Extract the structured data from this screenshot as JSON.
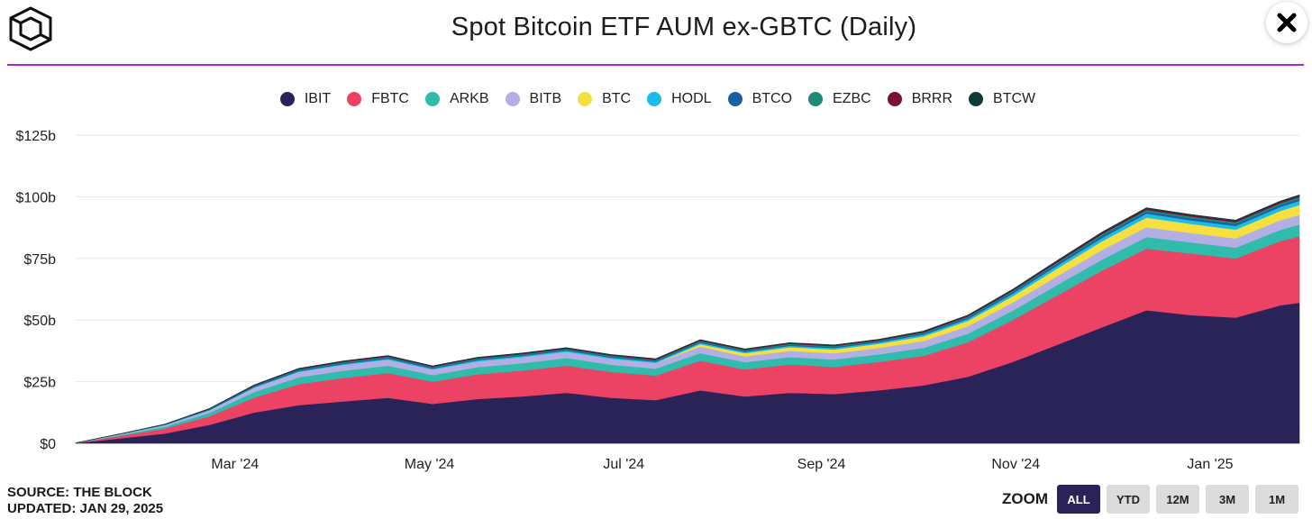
{
  "header": {
    "title": "Spot Bitcoin ETF AUM ex-GBTC (Daily)"
  },
  "footer": {
    "source_line": "SOURCE: THE BLOCK",
    "updated_line": "UPDATED: JAN 29, 2025"
  },
  "zoom": {
    "label": "ZOOM",
    "buttons": [
      "ALL",
      "YTD",
      "12M",
      "3M",
      "1M"
    ],
    "active": "ALL"
  },
  "colors": {
    "accent_line": "#a62bd6",
    "zoom_active": "#2a2358"
  },
  "chart_data": {
    "type": "area",
    "stacked": true,
    "title": "Spot Bitcoin ETF AUM ex-GBTC (Daily)",
    "y_tick_labels": [
      "$0",
      "$25b",
      "$50b",
      "$75b",
      "$100b",
      "$125b"
    ],
    "y_ticks": [
      0,
      25,
      50,
      75,
      100,
      125
    ],
    "ylim": [
      0,
      125
    ],
    "x_tick_labels": [
      "Mar '24",
      "May '24",
      "Jul '24",
      "Sep '24",
      "Nov '24",
      "Jan '25"
    ],
    "x_tick_dates": [
      "2024-03-01",
      "2024-05-01",
      "2024-07-01",
      "2024-09-01",
      "2024-11-01",
      "2025-01-01"
    ],
    "xlim": [
      "2024-01-11",
      "2025-01-29"
    ],
    "grid": true,
    "legend_position": "top-center",
    "x": [
      "2024-01-11",
      "2024-01-25",
      "2024-02-08",
      "2024-02-22",
      "2024-03-07",
      "2024-03-21",
      "2024-04-04",
      "2024-04-18",
      "2024-05-02",
      "2024-05-16",
      "2024-05-30",
      "2024-06-13",
      "2024-06-27",
      "2024-07-11",
      "2024-07-25",
      "2024-08-08",
      "2024-08-22",
      "2024-09-05",
      "2024-09-19",
      "2024-10-03",
      "2024-10-17",
      "2024-10-31",
      "2024-11-14",
      "2024-11-28",
      "2024-12-12",
      "2024-12-26",
      "2025-01-09",
      "2025-01-23",
      "2025-01-29"
    ],
    "series": [
      {
        "name": "IBIT",
        "color": "#2a2358",
        "values": [
          0.1,
          2.0,
          4.0,
          7.5,
          12.5,
          15.5,
          17.0,
          18.5,
          16.0,
          18.0,
          19.0,
          20.5,
          18.5,
          17.5,
          21.5,
          19.0,
          20.5,
          20.0,
          21.5,
          23.5,
          27.0,
          33.0,
          40.0,
          47.0,
          54.0,
          52.0,
          51.0,
          56.0,
          57.0
        ]
      },
      {
        "name": "FBTC",
        "color": "#ec4263",
        "values": [
          0.1,
          1.0,
          2.0,
          3.5,
          6.0,
          8.5,
          9.5,
          10.0,
          9.0,
          10.0,
          10.5,
          11.0,
          10.5,
          10.0,
          12.0,
          11.0,
          11.5,
          11.0,
          11.5,
          12.0,
          14.0,
          17.0,
          20.0,
          23.0,
          25.0,
          25.0,
          24.0,
          26.0,
          27.0
        ]
      },
      {
        "name": "ARKB",
        "color": "#2fbcab",
        "values": [
          0,
          0.4,
          0.8,
          1.4,
          2.3,
          2.8,
          3.0,
          3.0,
          2.7,
          2.9,
          3.0,
          3.1,
          2.9,
          2.8,
          3.1,
          2.9,
          3.0,
          3.0,
          3.1,
          3.2,
          3.5,
          3.8,
          4.2,
          4.5,
          4.7,
          4.5,
          4.4,
          4.6,
          4.7
        ]
      },
      {
        "name": "BITB",
        "color": "#b3aee3",
        "values": [
          0,
          0.3,
          0.6,
          1.0,
          1.7,
          2.1,
          2.3,
          2.4,
          2.2,
          2.3,
          2.4,
          2.5,
          2.4,
          2.3,
          2.6,
          2.4,
          2.5,
          2.5,
          2.6,
          2.8,
          3.0,
          3.3,
          3.6,
          3.9,
          4.0,
          3.8,
          3.7,
          3.9,
          4.0
        ]
      },
      {
        "name": "BTC",
        "color": "#f5e03f",
        "values": [
          0,
          0,
          0,
          0,
          0,
          0,
          0,
          0,
          0,
          0,
          0,
          0,
          0,
          0,
          1.0,
          1.3,
          1.5,
          1.6,
          1.7,
          1.9,
          2.2,
          2.6,
          3.1,
          3.5,
          3.9,
          3.7,
          3.6,
          3.8,
          4.0
        ]
      },
      {
        "name": "HODL",
        "color": "#19bde8",
        "values": [
          0,
          0.05,
          0.1,
          0.2,
          0.3,
          0.4,
          0.4,
          0.5,
          0.4,
          0.5,
          0.5,
          0.5,
          0.5,
          0.5,
          0.6,
          0.5,
          0.6,
          0.6,
          0.6,
          0.7,
          0.8,
          1.0,
          1.2,
          1.4,
          1.6,
          1.5,
          1.5,
          1.6,
          1.7
        ]
      },
      {
        "name": "BTCO",
        "color": "#1a5fa6",
        "values": [
          0,
          0.05,
          0.1,
          0.2,
          0.3,
          0.4,
          0.4,
          0.4,
          0.4,
          0.4,
          0.4,
          0.4,
          0.4,
          0.4,
          0.4,
          0.4,
          0.4,
          0.4,
          0.4,
          0.5,
          0.5,
          0.6,
          0.7,
          0.8,
          0.8,
          0.8,
          0.8,
          0.8,
          0.8
        ]
      },
      {
        "name": "EZBC",
        "color": "#1e8a78",
        "values": [
          0,
          0.03,
          0.08,
          0.15,
          0.25,
          0.3,
          0.35,
          0.35,
          0.3,
          0.35,
          0.35,
          0.35,
          0.35,
          0.35,
          0.35,
          0.35,
          0.35,
          0.35,
          0.35,
          0.4,
          0.45,
          0.5,
          0.6,
          0.7,
          0.7,
          0.7,
          0.7,
          0.7,
          0.7
        ]
      },
      {
        "name": "BRRR",
        "color": "#7a1238",
        "values": [
          0,
          0.02,
          0.05,
          0.1,
          0.2,
          0.25,
          0.3,
          0.3,
          0.28,
          0.3,
          0.3,
          0.3,
          0.3,
          0.3,
          0.3,
          0.3,
          0.3,
          0.3,
          0.3,
          0.35,
          0.4,
          0.45,
          0.5,
          0.55,
          0.6,
          0.55,
          0.55,
          0.6,
          0.6
        ]
      },
      {
        "name": "BTCW",
        "color": "#0f3a3a",
        "values": [
          0,
          0.02,
          0.04,
          0.08,
          0.12,
          0.15,
          0.16,
          0.17,
          0.16,
          0.17,
          0.17,
          0.17,
          0.17,
          0.17,
          0.17,
          0.17,
          0.17,
          0.17,
          0.17,
          0.18,
          0.2,
          0.22,
          0.25,
          0.27,
          0.28,
          0.27,
          0.27,
          0.28,
          0.28
        ]
      }
    ]
  }
}
